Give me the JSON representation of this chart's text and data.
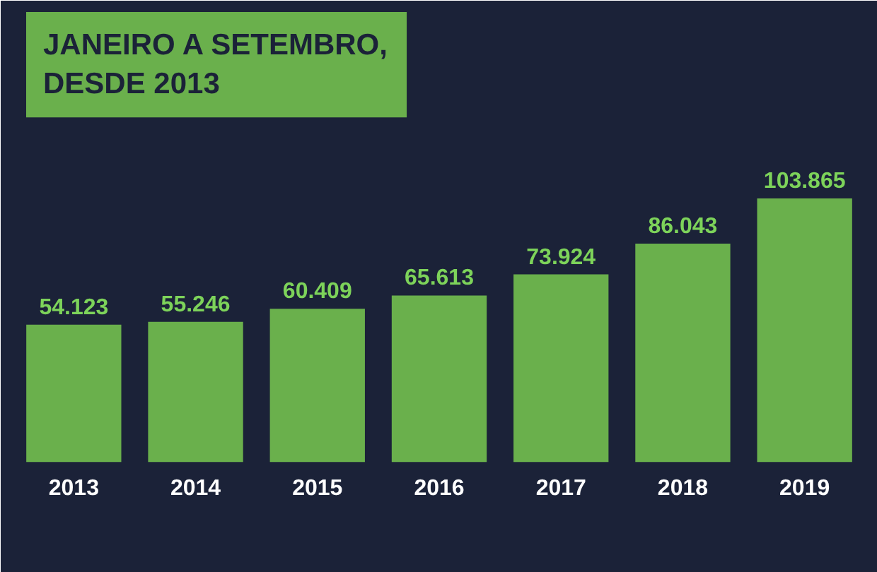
{
  "chart_data": {
    "type": "bar",
    "title": "JANEIRO A SETEMBRO, DESDE 2013",
    "categories": [
      "2013",
      "2014",
      "2015",
      "2016",
      "2017",
      "2018",
      "2019"
    ],
    "values": [
      54123,
      55246,
      60409,
      65613,
      73924,
      86043,
      103865
    ],
    "value_labels": [
      "54.123",
      "55.246",
      "60.409",
      "65.613",
      "73.924",
      "86.043",
      "103.865"
    ],
    "color": "#6ab04c"
  }
}
